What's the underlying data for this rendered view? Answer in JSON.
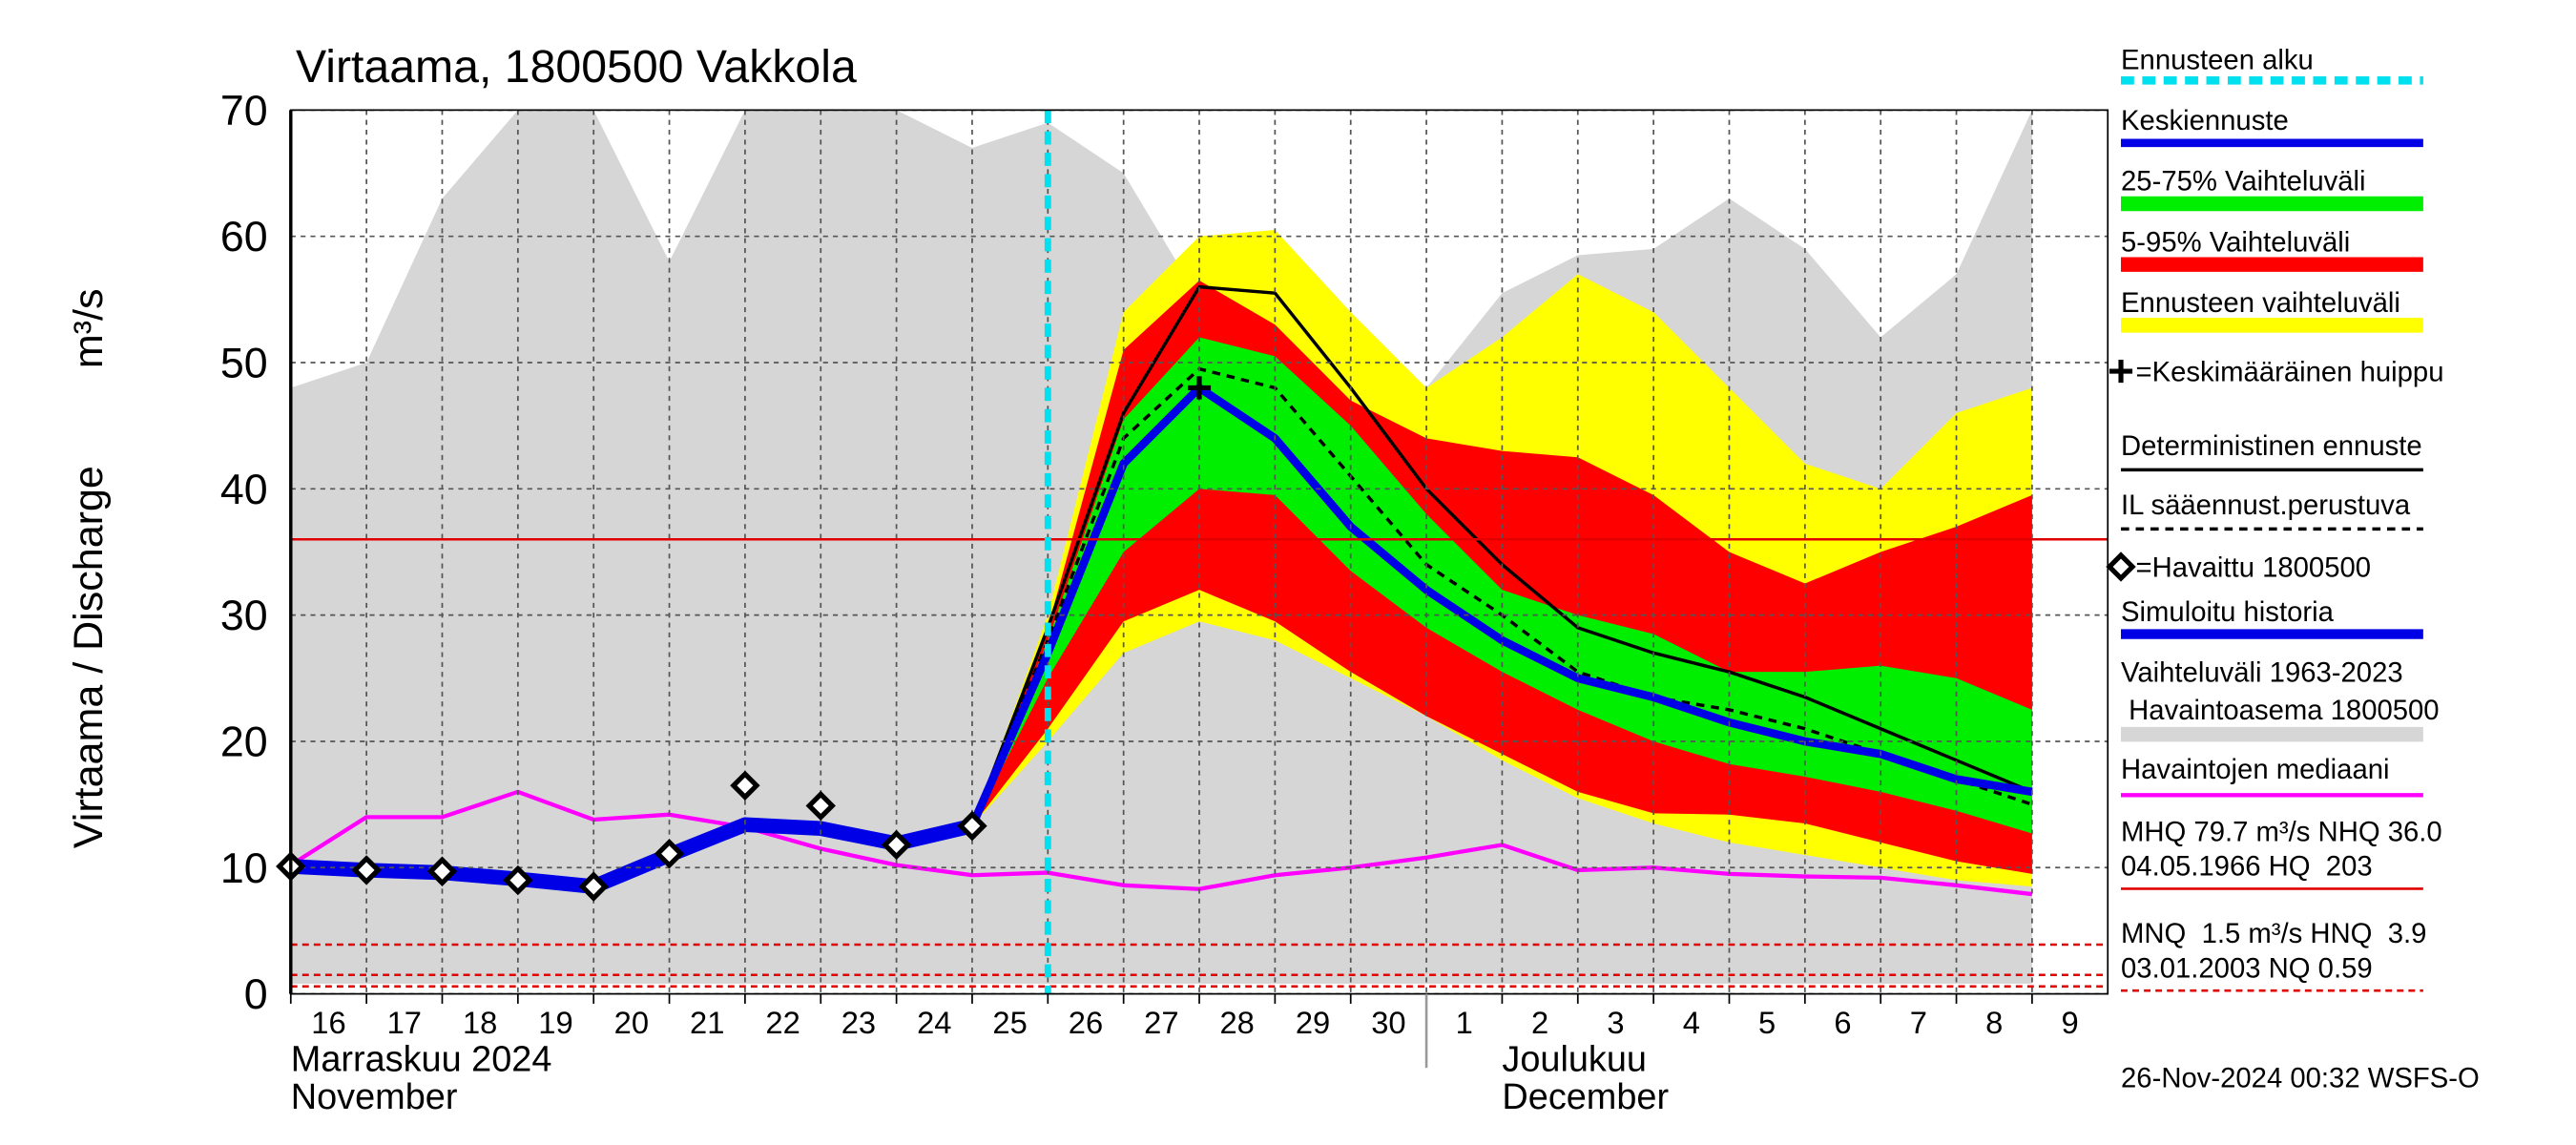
{
  "chart_data": {
    "type": "line",
    "title": "Virtaama, 1800500 Vakkola",
    "y_label": "Virtaama / Discharge",
    "y_unit": "m³/s",
    "month_labels": [
      {
        "label": "Marraskuu 2024",
        "sub": "November",
        "category": "16"
      },
      {
        "label": "Joulukuu",
        "sub": "December",
        "category": "2"
      }
    ],
    "month_break": "1",
    "timestamp": "26-Nov-2024 00:32 WSFS-O",
    "categories": [
      "16",
      "17",
      "18",
      "19",
      "20",
      "21",
      "22",
      "23",
      "24",
      "25",
      "26",
      "27",
      "28",
      "29",
      "30",
      "1",
      "2",
      "3",
      "4",
      "5",
      "6",
      "7",
      "8",
      "9"
    ],
    "ylim": [
      0,
      70
    ],
    "yticks": [
      0,
      10,
      20,
      30,
      40,
      50,
      60,
      70
    ],
    "grid": true,
    "forecast_start": {
      "label": "Ennusteen alku",
      "category": "26",
      "color": "#00e0ee"
    },
    "mean_peak": {
      "label": "=Keskimääräinen huippu",
      "category": "28",
      "value": 48
    },
    "series": [
      {
        "name": "Keskiennuste",
        "style": "line",
        "color": "#0000e6",
        "width": 5,
        "values": [
          null,
          null,
          null,
          null,
          null,
          null,
          null,
          null,
          null,
          13.3,
          27,
          42,
          48,
          44,
          37,
          32,
          28,
          25,
          23.5,
          21.5,
          20,
          19,
          17,
          16
        ]
      },
      {
        "name": "25-75% Vaihteluväli",
        "style": "band",
        "color": "#00ee00",
        "lower": [
          null,
          null,
          null,
          null,
          null,
          null,
          null,
          null,
          null,
          13.3,
          25,
          35,
          40,
          39.5,
          33.5,
          29,
          25.5,
          22.5,
          20,
          18.2,
          17.2,
          16,
          14.5,
          12.7
        ],
        "upper": [
          null,
          null,
          null,
          null,
          null,
          null,
          null,
          null,
          null,
          13.3,
          28,
          45.5,
          52,
          50.5,
          45,
          38,
          32,
          30,
          28.5,
          25.5,
          25.5,
          26,
          25,
          22.5
        ]
      },
      {
        "name": "5-95% Vaihteluväli",
        "style": "band",
        "color": "#ff0000",
        "lower": [
          null,
          null,
          null,
          null,
          null,
          null,
          null,
          null,
          null,
          13.3,
          21,
          29.5,
          32,
          29.5,
          25.5,
          22,
          19,
          16,
          14.3,
          14.2,
          13.5,
          12,
          10.5,
          9.5
        ],
        "upper": [
          null,
          null,
          null,
          null,
          null,
          null,
          null,
          null,
          null,
          13.3,
          29,
          51,
          56.5,
          53,
          47,
          44,
          43,
          42.5,
          39.5,
          35,
          32.5,
          35,
          37,
          39.5
        ]
      },
      {
        "name": "Ennusteen vaihteluväli",
        "style": "band",
        "color": "#ffff00",
        "lower": [
          null,
          null,
          null,
          null,
          null,
          null,
          null,
          null,
          null,
          13.3,
          20,
          27,
          29.5,
          28,
          25,
          22,
          18.5,
          15.5,
          13.5,
          12,
          11,
          10,
          9,
          8.5
        ],
        "upper": [
          null,
          null,
          null,
          null,
          null,
          null,
          null,
          null,
          null,
          13.3,
          30,
          54,
          60,
          60.5,
          54,
          48,
          52,
          57,
          54,
          48,
          42,
          40,
          46,
          48
        ]
      },
      {
        "name": "Deterministinen ennuste",
        "style": "line",
        "color": "#000000",
        "width": 2,
        "values": [
          null,
          null,
          null,
          null,
          null,
          null,
          null,
          null,
          null,
          13.3,
          29,
          46,
          56,
          55.5,
          48,
          40,
          34,
          29,
          27,
          25.5,
          23.5,
          21,
          18.5,
          16
        ]
      },
      {
        "name": "IL sääennust.perustuva",
        "style": "dashed",
        "color": "#000000",
        "width": 2,
        "values": [
          null,
          null,
          null,
          null,
          null,
          null,
          null,
          null,
          null,
          13.3,
          28,
          44,
          49.5,
          48,
          41,
          34,
          30,
          25.5,
          23.5,
          22.5,
          21,
          19,
          17,
          15
        ]
      },
      {
        "name": "=Havaittu 1800500",
        "style": "markers",
        "color": "#000000",
        "values": [
          10.1,
          9.8,
          9.7,
          9.0,
          8.5,
          11.1,
          16.5,
          14.9,
          11.8,
          13.3,
          null,
          null,
          null,
          null,
          null,
          null,
          null,
          null,
          null,
          null,
          null,
          null,
          null,
          null
        ]
      },
      {
        "name": "Simuloitu historia",
        "style": "line",
        "color": "#0000e6",
        "width": 9,
        "values": [
          10.1,
          9.8,
          9.6,
          9.1,
          8.5,
          11.0,
          13.4,
          13.1,
          11.9,
          13.3,
          null,
          null,
          null,
          null,
          null,
          null,
          null,
          null,
          null,
          null,
          null,
          null,
          null,
          null
        ]
      },
      {
        "name": "Vaihteluväli 1963-2023",
        "subname": " Havaintoasema 1800500",
        "style": "band",
        "color": "#d6d6d6",
        "lower": [
          0.8,
          0.8,
          0.8,
          0.8,
          0.8,
          0.8,
          0.8,
          0.8,
          0.8,
          0.8,
          0.8,
          0.8,
          0.8,
          0.8,
          0.8,
          0.8,
          0.8,
          0.8,
          0.8,
          0.8,
          0.8,
          0.8,
          0.8,
          0.8
        ],
        "upper": [
          48,
          50,
          63,
          70,
          70,
          58,
          70,
          70,
          70,
          67,
          69,
          65,
          55,
          54,
          50,
          48,
          55.5,
          58.5,
          59,
          63,
          59,
          52,
          57,
          70
        ]
      },
      {
        "name": "Havaintojen mediaani",
        "style": "line",
        "color": "#ff00ff",
        "width": 2.5,
        "values": [
          10.2,
          14,
          14,
          16,
          13.8,
          14.2,
          13.2,
          11.5,
          10.2,
          9.4,
          9.6,
          8.6,
          8.3,
          9.4,
          10,
          10.8,
          11.8,
          9.8,
          10,
          9.5,
          9.3,
          9.2,
          8.6,
          7.9
        ]
      }
    ],
    "reference_lines": [
      {
        "value": 36,
        "color": "#e00000",
        "dash": false,
        "label": [
          "MHQ 79.7 m³/s NHQ 36.0",
          "04.05.1966 HQ  203"
        ]
      },
      {
        "value": 3.9,
        "color": "#e00000",
        "dash": true,
        "label": [
          "MNQ  1.5 m³/s HNQ  3.9",
          "03.01.2003 NQ 0.59"
        ]
      },
      {
        "value": 1.5,
        "color": "#e00000",
        "dash": true
      },
      {
        "value": 0.59,
        "color": "#e00000",
        "dash": true
      }
    ]
  }
}
